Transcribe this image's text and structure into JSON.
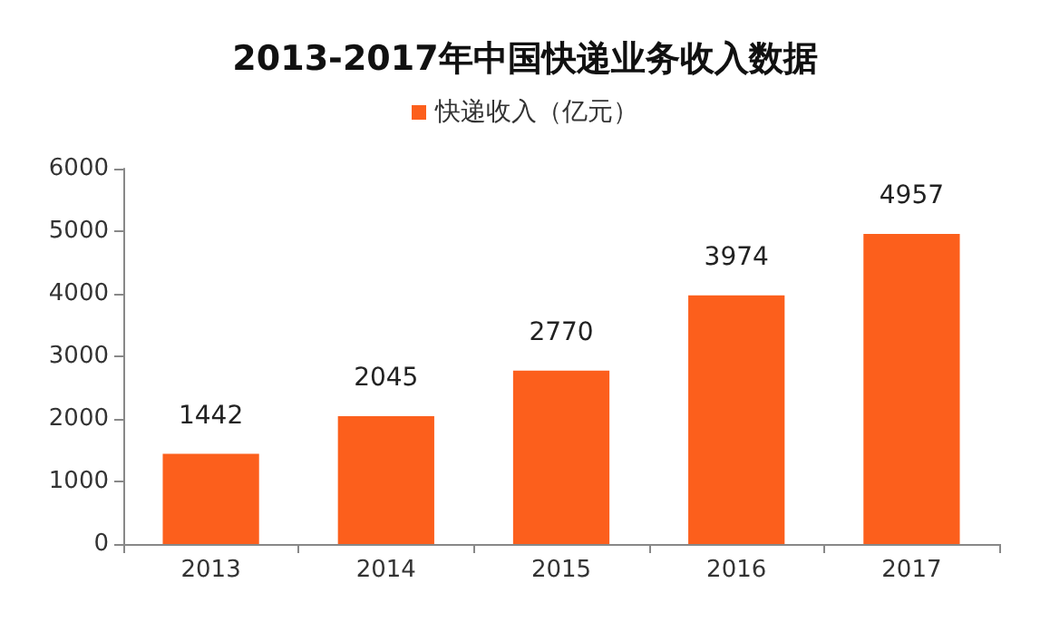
{
  "chart_data": {
    "type": "bar",
    "title": "2013-2017年中国快递业务收入数据",
    "categories": [
      "2013",
      "2014",
      "2015",
      "2016",
      "2017"
    ],
    "series": [
      {
        "name": "快递收入（亿元）",
        "color": "#fc5f1c",
        "values": [
          1442,
          2045,
          2770,
          3974,
          4957
        ]
      }
    ],
    "ylim": [
      0,
      6000
    ],
    "yticks": [
      0,
      1000,
      2000,
      3000,
      4000,
      5000,
      6000
    ],
    "grid": false,
    "legend": "top",
    "data_labels": true
  }
}
